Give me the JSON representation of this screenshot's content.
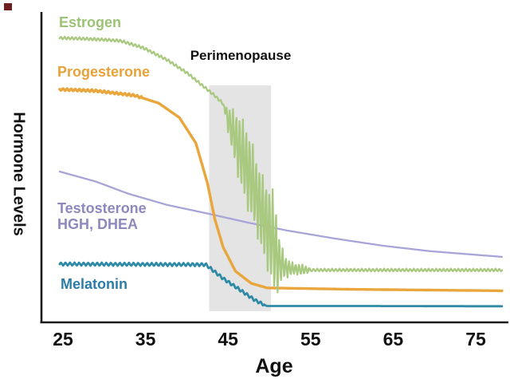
{
  "figure": {
    "x_axis_label": "Age",
    "y_axis_label": "Hormone Levels",
    "annotation_label": "Perimenopause"
  },
  "decorations": {
    "corner_square_color": "#6e1e1e"
  },
  "chart_data": {
    "type": "line",
    "title": "",
    "xlabel": "Age",
    "ylabel": "Hormone Levels",
    "x_ticks": [
      25,
      35,
      45,
      55,
      65,
      75
    ],
    "x_range": [
      24.6,
      78.2
    ],
    "y_range_levels": [
      0,
      100
    ],
    "y_ticks": "none (qualitative axis)",
    "grid": false,
    "legend_position": "inline labels next to curves",
    "axis_color": "#1a1a1a",
    "annotations": [
      {
        "text": "Perimenopause",
        "label_color": "#111111",
        "band_age_range": [
          42.7,
          50.2
        ],
        "band_level_range": [
          3.9,
          82.5
        ],
        "band_color": "#e4e4e4"
      }
    ],
    "series": [
      {
        "name": "Testosterone, HGH, DHEA",
        "label_lines": [
          "Testosterone",
          "HGH, DHEA"
        ],
        "color": "#a8a4d8",
        "label_color": "#8d88bd",
        "width": 2.3,
        "points": [
          [
            24.6,
            52.5
          ],
          [
            29,
            49
          ],
          [
            32.9,
            44.8
          ],
          [
            37.6,
            40.9
          ],
          [
            42.5,
            37.9
          ],
          [
            47.3,
            34.8
          ],
          [
            52.1,
            32
          ],
          [
            57.9,
            29.2
          ],
          [
            63.7,
            26.7
          ],
          [
            69.4,
            24.8
          ],
          [
            74.2,
            23.7
          ],
          [
            78.2,
            22.8
          ]
        ]
      },
      {
        "name": "Progesterone",
        "color": "#e9a63c",
        "label_color": "#e8a23a",
        "width": 3.4,
        "texture": {
          "amp": 0.4,
          "period": 0.5,
          "until": 34.5
        },
        "points": [
          [
            24.6,
            81.1
          ],
          [
            29,
            80.6
          ],
          [
            33.7,
            79
          ],
          [
            36.6,
            76.3
          ],
          [
            39.1,
            71.3
          ],
          [
            41.1,
            62.4
          ],
          [
            42.5,
            48.5
          ],
          [
            43.4,
            35.9
          ],
          [
            44.4,
            26.2
          ],
          [
            45.9,
            17.8
          ],
          [
            47.8,
            13.6
          ],
          [
            49.7,
            12
          ],
          [
            60,
            11.5
          ],
          [
            78.2,
            11
          ]
        ]
      },
      {
        "name": "Melatonin",
        "color": "#2e8aa5",
        "label_color": "#2b7ca8",
        "width": 2.8,
        "texture": {
          "amp": 0.55,
          "period": 0.55,
          "until": 49.4
        },
        "points": [
          [
            24.6,
            20.3
          ],
          [
            42.3,
            20.1
          ],
          [
            44.4,
            15.3
          ],
          [
            46.8,
            10.6
          ],
          [
            48.4,
            7.5
          ],
          [
            49.7,
            5.7
          ],
          [
            60,
            5.7
          ],
          [
            78.2,
            5.6
          ]
        ]
      },
      {
        "name": "Estrogen",
        "color": "#a8c97f",
        "label_color": "#9cc276",
        "width": 2.3,
        "texture": {
          "amp": 0.5,
          "period": 0.45,
          "until": 78.2
        },
        "oscillation": {
          "start": 44.6,
          "end": 55,
          "period": 0.4,
          "amp_profile": [
            [
              44.6,
              2
            ],
            [
              45.3,
              7
            ],
            [
              46.2,
              11
            ],
            [
              47.2,
              14
            ],
            [
              48.6,
              14
            ],
            [
              49.9,
              15
            ],
            [
              50.7,
              18
            ],
            [
              51.1,
              10
            ],
            [
              51.7,
              5
            ],
            [
              53,
              2
            ],
            [
              55,
              0.6
            ]
          ]
        },
        "points": [
          [
            24.6,
            99
          ],
          [
            27,
            98.8
          ],
          [
            30,
            98.4
          ],
          [
            32,
            98
          ],
          [
            34.7,
            95.6
          ],
          [
            37.6,
            91.4
          ],
          [
            40.1,
            86.7
          ],
          [
            42,
            82.2
          ],
          [
            43.4,
            78.9
          ],
          [
            44.4,
            76.1
          ],
          [
            45,
            70.5
          ],
          [
            46.3,
            61
          ],
          [
            47.8,
            50
          ],
          [
            49.2,
            37
          ],
          [
            50.4,
            29
          ],
          [
            51.1,
            21.5
          ],
          [
            52,
            19
          ],
          [
            53.5,
            18.4
          ],
          [
            55,
            18.2
          ],
          [
            78.2,
            18.2
          ]
        ]
      }
    ]
  }
}
